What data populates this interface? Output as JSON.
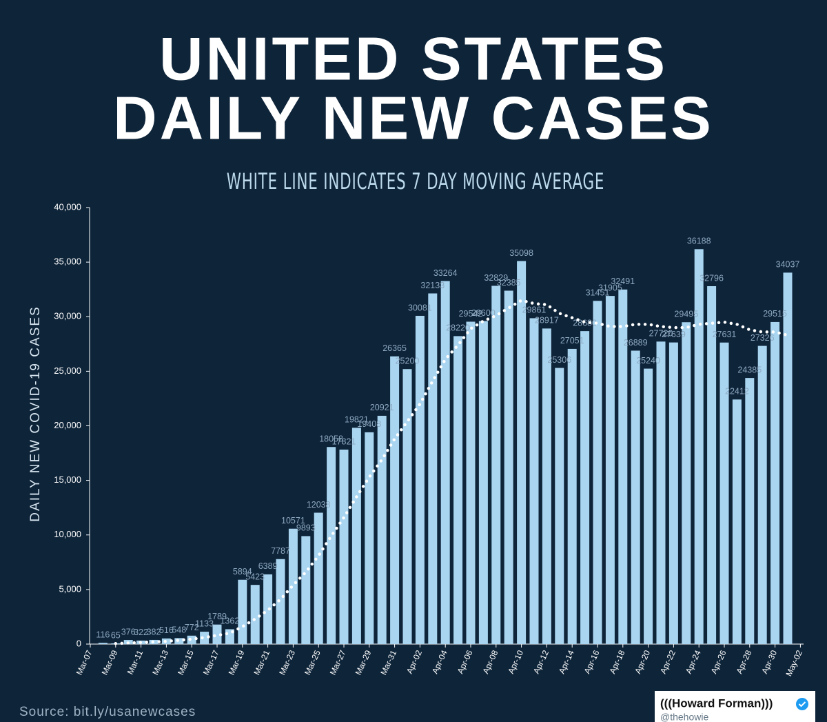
{
  "chart_data": {
    "type": "bar",
    "title": [
      "UNITED STATES",
      "DAILY NEW CASES"
    ],
    "subtitle": "WHITE LINE INDICATES 7 DAY MOVING AVERAGE",
    "y_label": "DAILY NEW COVID-19 CASES",
    "source": "Source: bit.ly/usanewcases",
    "credit": {
      "name": "(((Howard Forman)))",
      "handle": "@thehowie"
    },
    "categories": [
      "Mar-07",
      null,
      "Mar-09",
      null,
      "Mar-11",
      null,
      "Mar-13",
      null,
      "Mar-15",
      null,
      "Mar-17",
      null,
      "Mar-19",
      null,
      "Mar-21",
      null,
      "Mar-23",
      null,
      "Mar-25",
      null,
      "Mar-27",
      null,
      "Mar-29",
      null,
      "Mar-31",
      null,
      "Apr-02",
      null,
      "Apr-04",
      null,
      "Apr-06",
      null,
      "Apr-08",
      null,
      "Apr-10",
      null,
      "Apr-12",
      null,
      "Apr-14",
      null,
      "Apr-16",
      null,
      "Apr-18",
      null,
      "Apr-20",
      null,
      "Apr-22",
      null,
      "Apr-24",
      null,
      "Apr-26",
      null,
      "Apr-28",
      null,
      "Apr-30",
      null,
      "May-02"
    ],
    "values": [
      null,
      116,
      65,
      376,
      322,
      382,
      516,
      548,
      772,
      1133,
      1789,
      1362,
      5894,
      5423,
      6389,
      7787,
      10571,
      9893,
      12038,
      18058,
      17821,
      19821,
      19408,
      20921,
      26365,
      25200,
      30081,
      32133,
      33264,
      28220,
      29542,
      29600,
      32829,
      32385,
      35098,
      29861,
      28917,
      25306,
      27051,
      28680,
      31451,
      31905,
      32491,
      26889,
      25240,
      27720,
      27639,
      29495,
      36188,
      32796,
      27631,
      22412,
      24385,
      27326,
      29515,
      34037,
      null
    ],
    "color": "#a9d5f1",
    "moving_average": {
      "color": "#ffffff",
      "values": [
        null,
        null,
        50,
        100,
        150,
        200,
        250,
        350,
        450,
        600,
        800,
        1000,
        1600,
        2300,
        3100,
        4100,
        5400,
        6600,
        8100,
        9900,
        11600,
        13500,
        15300,
        16900,
        18800,
        20400,
        22000,
        24100,
        26100,
        27400,
        28900,
        29600,
        30100,
        30800,
        31500,
        31200,
        31100,
        30300,
        29900,
        29500,
        29400,
        29100,
        29100,
        29300,
        29300,
        29100,
        29000,
        29000,
        29300,
        29400,
        29500,
        29300,
        28800,
        28600,
        28600,
        28300,
        null
      ]
    },
    "ylim": [
      0,
      40000
    ],
    "yticks": [
      0,
      {
        "value": 5000,
        "label": "5,000"
      },
      {
        "value": 10000,
        "label": "10,000"
      },
      {
        "value": 15000,
        "label": "15,000"
      },
      {
        "value": 20000,
        "label": "20,000"
      },
      {
        "value": 25000,
        "label": "25,000"
      },
      {
        "value": 30000,
        "label": "30,000"
      },
      {
        "value": 35000,
        "label": "35,000"
      },
      {
        "value": 40000,
        "label": "40,000"
      }
    ]
  }
}
